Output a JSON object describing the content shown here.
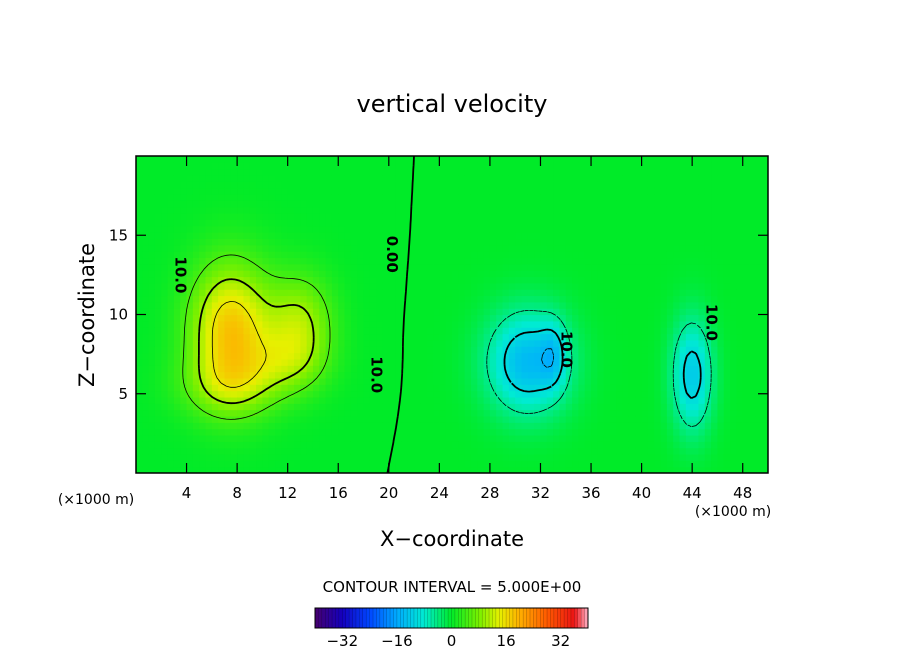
{
  "chart_data": {
    "type": "heatmap",
    "title": "vertical velocity",
    "xlabel": "X−coordinate",
    "ylabel": "Z−coordinate",
    "x_unit": "(×1000 m)",
    "z_unit": "(×1000 m)",
    "x_ticks": [
      4,
      8,
      12,
      16,
      20,
      24,
      28,
      32,
      36,
      40,
      44,
      48
    ],
    "z_ticks": [
      5,
      10,
      15
    ],
    "xlim": [
      0,
      50
    ],
    "zlim": [
      0,
      20
    ],
    "contour_interval_text": "CONTOUR INTERVAL = 5.000E+00",
    "contour_interval": 5,
    "contour_labels": [
      "10.0",
      "0.00",
      "10.0",
      "10.0",
      "10.0"
    ],
    "colorbar": {
      "ticks": [
        -32,
        -16,
        0,
        16,
        32
      ],
      "tick_labels": [
        "−32",
        "−16",
        "0",
        "16",
        "32"
      ],
      "range": [
        -40,
        40
      ]
    },
    "fields": [
      {
        "kind": "updraft",
        "x": 7.5,
        "z": 9.0,
        "sx": 3.2,
        "sz": 4.2,
        "amp": 18
      },
      {
        "kind": "updraft",
        "x": 7.5,
        "z": 5.5,
        "sx": 4.0,
        "sz": 2.0,
        "amp": 6
      },
      {
        "kind": "updraft",
        "x": 13.0,
        "z": 9.5,
        "sx": 2.6,
        "sz": 3.0,
        "amp": 10
      },
      {
        "kind": "updraft",
        "x": 12.0,
        "z": 7.0,
        "sx": 3.0,
        "sz": 2.0,
        "amp": 6
      },
      {
        "kind": "downdraft",
        "x": 31.0,
        "z": 7.0,
        "sx": 3.2,
        "sz": 3.2,
        "amp": -14
      },
      {
        "kind": "downdraft",
        "x": 33.0,
        "z": 7.5,
        "sx": 1.0,
        "sz": 2.0,
        "amp": -6
      },
      {
        "kind": "downdraft",
        "x": 44.0,
        "z": 6.2,
        "sx": 1.6,
        "sz": 3.5,
        "amp": -12
      }
    ],
    "colors": {
      "frame": "#000000",
      "background": "#ffffff"
    }
  }
}
